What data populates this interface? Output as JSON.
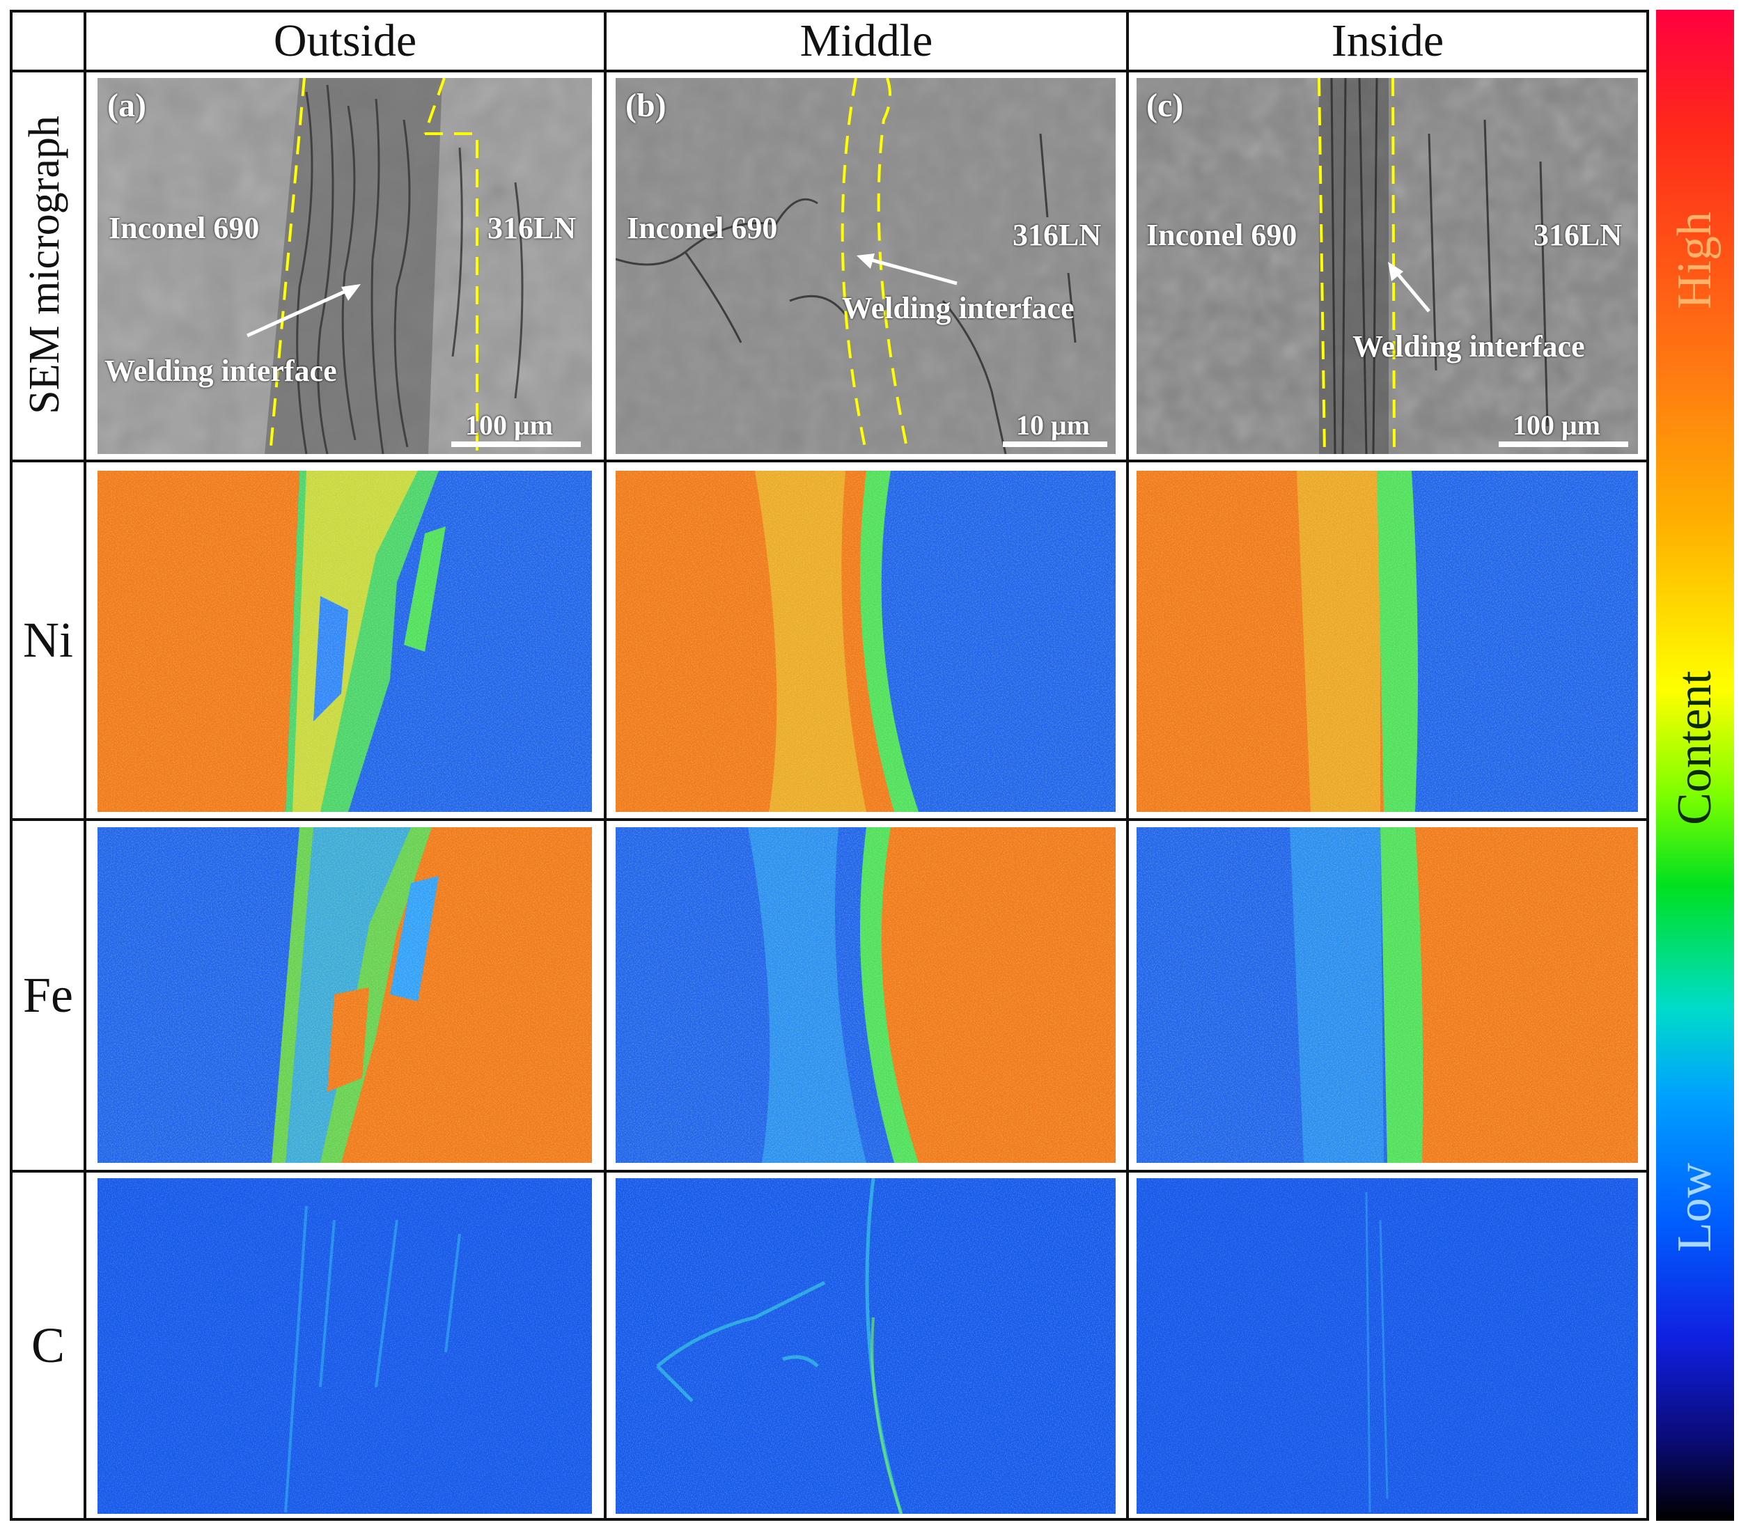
{
  "columns": [
    "Outside",
    "Middle",
    "Inside"
  ],
  "rows": {
    "sem": "SEM micrograph",
    "ni": "Ni",
    "fe": "Fe",
    "c": "C"
  },
  "panels": [
    {
      "label": "(a)",
      "left_material": "Inconel 690",
      "right_material": "316LN",
      "annotation": "Welding interface",
      "scale_bar": "100 μm"
    },
    {
      "label": "(b)",
      "left_material": "Inconel 690",
      "right_material": "316LN",
      "annotation": "Welding interface",
      "scale_bar": "10 μm"
    },
    {
      "label": "(c)",
      "left_material": "Inconel 690",
      "right_material": "316LN",
      "annotation": "Welding interface",
      "scale_bar": "100 μm"
    }
  ],
  "colorbar": {
    "high": "High",
    "content": "Content",
    "low": "Low",
    "colors": [
      "#ff0040",
      "#ff7a12",
      "#ffff00",
      "#00e020",
      "#00a0ff",
      "#1020e0",
      "#000000"
    ]
  },
  "map_colors": {
    "high": "#f07a1e",
    "low": "#1e64f0",
    "mid": "#4ee060"
  }
}
